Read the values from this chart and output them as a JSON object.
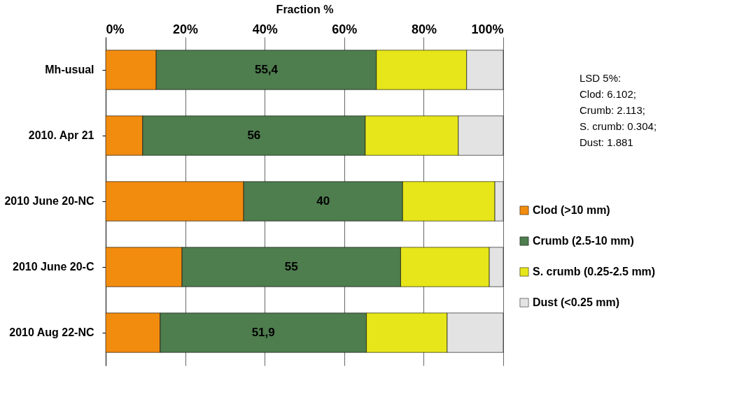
{
  "chart_data": {
    "type": "bar",
    "orientation": "horizontal",
    "stacked": true,
    "xlabel": "Fraction %",
    "categories": [
      "Mh-usual",
      "2010. Apr 21",
      "2010 June 20-NC",
      "2010 June 20-C",
      "2010 Aug 22-NC"
    ],
    "series": [
      {
        "name": "Clod (>10 mm)",
        "color": "#f28c0f",
        "values": [
          12.7,
          9.3,
          34.7,
          19.2,
          13.7
        ]
      },
      {
        "name": "Crumb (2.5-10 mm)",
        "color": "#4e7d4e",
        "values": [
          55.4,
          56,
          40,
          55,
          51.9
        ],
        "value_labels": [
          "55,4",
          "56",
          "40",
          "55",
          "51,9"
        ]
      },
      {
        "name": "S. crumb (0.25-2.5 mm)",
        "color": "#e6e61a",
        "values": [
          22.7,
          23.4,
          23.2,
          22.3,
          20.3
        ]
      },
      {
        "name": "Dust (<0.25 mm)",
        "color": "#e3e3e3",
        "values": [
          9.2,
          11.3,
          2.1,
          3.5,
          14.1
        ]
      }
    ],
    "xlim": [
      0,
      100
    ],
    "xticks": [
      {
        "value": 0,
        "label": "0%"
      },
      {
        "value": 20,
        "label": "20%"
      },
      {
        "value": 40,
        "label": "40%"
      },
      {
        "value": 60,
        "label": "60%"
      },
      {
        "value": 80,
        "label": "80%"
      },
      {
        "value": 100,
        "label": "100%"
      }
    ],
    "grid": "x",
    "legend": "right",
    "annotations": [
      "LSD 5%:",
      "Clod: 6.102;",
      "Crumb: 2.113;",
      "S. crumb: 0.304;",
      "Dust: 1.881"
    ]
  }
}
